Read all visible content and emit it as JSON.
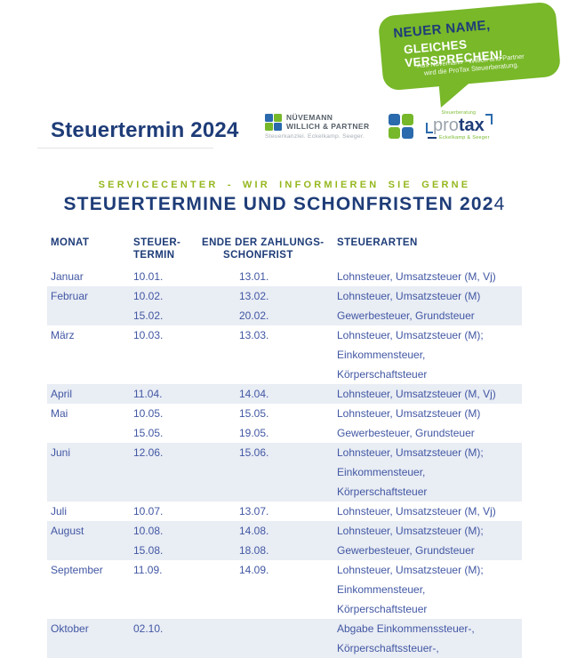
{
  "bubble": {
    "line1": "NEUER NAME,",
    "line2": "GLEICHES VERSPRECHEN!",
    "small_line1": "Aus Nüvemann - Willich und Partner",
    "small_line2": "wird die ProTax Steuerberatung.",
    "bg_color": "#78b829",
    "line1_color": "#1e3c78",
    "line2_color": "#ffffff"
  },
  "page": {
    "title": "Steuertermin 2024"
  },
  "logos": {
    "nuevemann": {
      "name_line1": "NÜVEMANN",
      "name_line2": "WILLICH & PARTNER",
      "subtitle": "Steuerkanzlei. Eckelkamp. Seeger."
    },
    "protax": {
      "tagline_top": "Steuerberatung",
      "word_pro": "pro",
      "word_tax": "tax",
      "tagline_bottom": "Eckelkamp & Seeger"
    }
  },
  "header": {
    "kicker": "SERVICECENTER - WIR INFORMIEREN SIE GERNE",
    "title_main": "STEUERTERMINE UND SCHONFRISTEN 202",
    "title_last": "4"
  },
  "colors": {
    "navy": "#1e3c78",
    "body_blue": "#4157a3",
    "kicker_green": "#95b71e",
    "logo_green": "#76b82a",
    "logo_blue": "#2a6aad",
    "row_band": "#e9edf4"
  },
  "table": {
    "col_monat": "MONAT",
    "col_termin_line1": "STEUER-",
    "col_termin_line2": "TERMIN",
    "col_frist_line1": "ENDE DER ZAHLUNGS-",
    "col_frist_line2": "SCHONFRIST",
    "col_arten": "STEUERARTEN",
    "rows": [
      {
        "month": "Januar",
        "shaded": false,
        "lines": [
          {
            "termin": "10.01.",
            "frist": "13.01.",
            "arten": [
              "Lohnsteuer, Umsatzsteuer (M, Vj)"
            ]
          }
        ]
      },
      {
        "month": "Februar",
        "shaded": true,
        "lines": [
          {
            "termin": "10.02.",
            "frist": "13.02.",
            "arten": [
              "Lohnsteuer, Umsatzsteuer (M)"
            ]
          },
          {
            "termin": "15.02.",
            "frist": "20.02.",
            "arten": [
              "Gewerbesteuer, Grundsteuer"
            ]
          }
        ]
      },
      {
        "month": "März",
        "shaded": false,
        "lines": [
          {
            "termin": "10.03.",
            "frist": "13.03.",
            "arten": [
              "Lohnsteuer, Umsatzsteuer (M);",
              "Einkommensteuer, Körperschaftsteuer"
            ]
          }
        ]
      },
      {
        "month": "April",
        "shaded": true,
        "lines": [
          {
            "termin": "11.04.",
            "frist": "14.04.",
            "arten": [
              "Lohnsteuer, Umsatzsteuer (M, Vj)"
            ]
          }
        ]
      },
      {
        "month": "Mai",
        "shaded": false,
        "lines": [
          {
            "termin": "10.05.",
            "frist": "15.05.",
            "arten": [
              "Lohnsteuer, Umsatzsteuer (M)"
            ]
          },
          {
            "termin": "15.05.",
            "frist": "19.05.",
            "arten": [
              "Gewerbesteuer, Grundsteuer"
            ]
          }
        ]
      },
      {
        "month": "Juni",
        "shaded": true,
        "lines": [
          {
            "termin": "12.06.",
            "frist": "15.06.",
            "arten": [
              "Lohnsteuer, Umsatzsteuer (M);",
              "Einkommensteuer, Körperschaftsteuer"
            ]
          }
        ]
      },
      {
        "month": "Juli",
        "shaded": false,
        "lines": [
          {
            "termin": "10.07.",
            "frist": "13.07.",
            "arten": [
              "Lohnsteuer, Umsatzsteuer (M, Vj)"
            ]
          }
        ]
      },
      {
        "month": "August",
        "shaded": true,
        "lines": [
          {
            "termin": "10.08.",
            "frist": "14.08.",
            "arten": [
              "Lohnsteuer, Umsatzsteuer (M);"
            ]
          },
          {
            "termin": "15.08.",
            "frist": "18.08.",
            "arten": [
              "Gewerbesteuer, Grundsteuer"
            ]
          }
        ]
      },
      {
        "month": "September",
        "shaded": false,
        "lines": [
          {
            "termin": "11.09.",
            "frist": "14.09.",
            "arten": [
              "Lohnsteuer, Umsatzsteuer (M);",
              "Einkommensteuer, Körperschaftsteuer"
            ]
          }
        ]
      },
      {
        "month": "Oktober",
        "shaded": true,
        "lines": [
          {
            "termin": "02.10.",
            "frist": "",
            "arten": [
              "Abgabe Einkommenssteuer-,",
              "Körperschaftssteuer-,"
            ]
          }
        ]
      }
    ]
  }
}
